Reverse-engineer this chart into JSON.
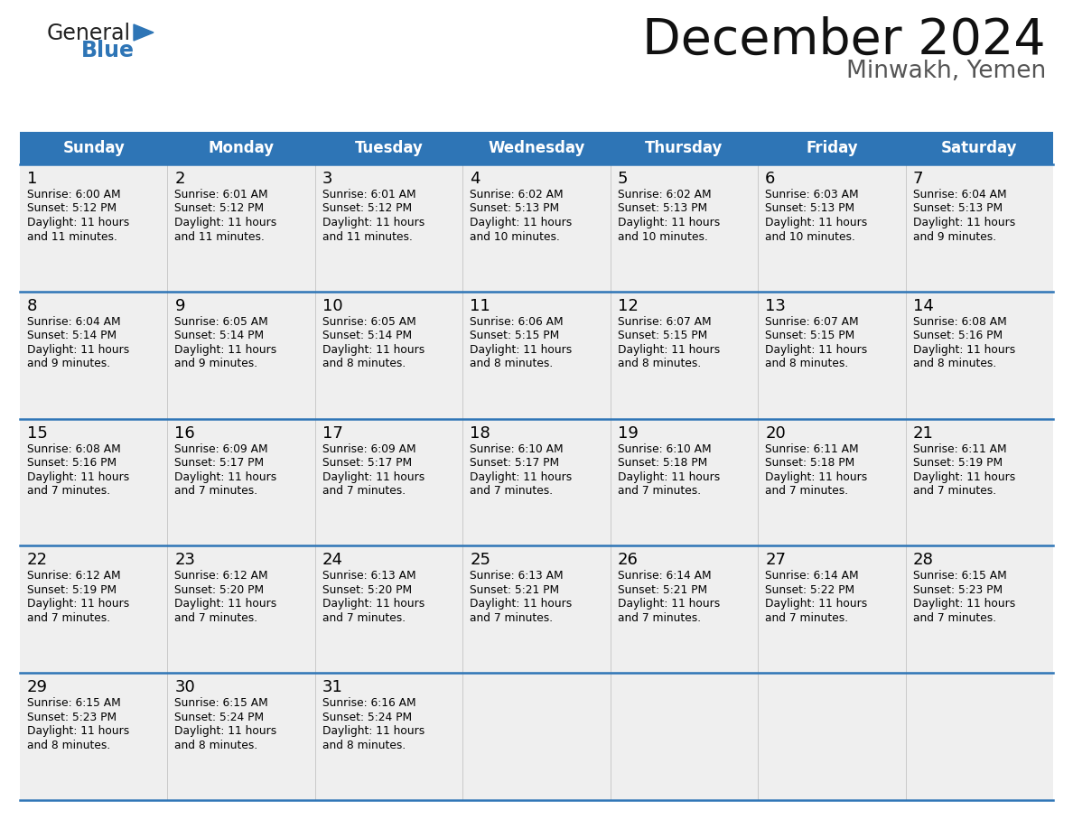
{
  "title": "December 2024",
  "subtitle": "Minwakh, Yemen",
  "header_color": "#2E75B6",
  "header_text_color": "#FFFFFF",
  "day_names": [
    "Sunday",
    "Monday",
    "Tuesday",
    "Wednesday",
    "Thursday",
    "Friday",
    "Saturday"
  ],
  "bg_color": "#FFFFFF",
  "cell_bg": "#EFEFEF",
  "row_divider_color": "#2E75B6",
  "cell_text_color": "#000000",
  "days": [
    {
      "date": 1,
      "col": 0,
      "row": 0,
      "sunrise": "6:00 AM",
      "sunset": "5:12 PM",
      "daylight_h": "11 hours",
      "daylight_m": "and 11 minutes."
    },
    {
      "date": 2,
      "col": 1,
      "row": 0,
      "sunrise": "6:01 AM",
      "sunset": "5:12 PM",
      "daylight_h": "11 hours",
      "daylight_m": "and 11 minutes."
    },
    {
      "date": 3,
      "col": 2,
      "row": 0,
      "sunrise": "6:01 AM",
      "sunset": "5:12 PM",
      "daylight_h": "11 hours",
      "daylight_m": "and 11 minutes."
    },
    {
      "date": 4,
      "col": 3,
      "row": 0,
      "sunrise": "6:02 AM",
      "sunset": "5:13 PM",
      "daylight_h": "11 hours",
      "daylight_m": "and 10 minutes."
    },
    {
      "date": 5,
      "col": 4,
      "row": 0,
      "sunrise": "6:02 AM",
      "sunset": "5:13 PM",
      "daylight_h": "11 hours",
      "daylight_m": "and 10 minutes."
    },
    {
      "date": 6,
      "col": 5,
      "row": 0,
      "sunrise": "6:03 AM",
      "sunset": "5:13 PM",
      "daylight_h": "11 hours",
      "daylight_m": "and 10 minutes."
    },
    {
      "date": 7,
      "col": 6,
      "row": 0,
      "sunrise": "6:04 AM",
      "sunset": "5:13 PM",
      "daylight_h": "11 hours",
      "daylight_m": "and 9 minutes."
    },
    {
      "date": 8,
      "col": 0,
      "row": 1,
      "sunrise": "6:04 AM",
      "sunset": "5:14 PM",
      "daylight_h": "11 hours",
      "daylight_m": "and 9 minutes."
    },
    {
      "date": 9,
      "col": 1,
      "row": 1,
      "sunrise": "6:05 AM",
      "sunset": "5:14 PM",
      "daylight_h": "11 hours",
      "daylight_m": "and 9 minutes."
    },
    {
      "date": 10,
      "col": 2,
      "row": 1,
      "sunrise": "6:05 AM",
      "sunset": "5:14 PM",
      "daylight_h": "11 hours",
      "daylight_m": "and 8 minutes."
    },
    {
      "date": 11,
      "col": 3,
      "row": 1,
      "sunrise": "6:06 AM",
      "sunset": "5:15 PM",
      "daylight_h": "11 hours",
      "daylight_m": "and 8 minutes."
    },
    {
      "date": 12,
      "col": 4,
      "row": 1,
      "sunrise": "6:07 AM",
      "sunset": "5:15 PM",
      "daylight_h": "11 hours",
      "daylight_m": "and 8 minutes."
    },
    {
      "date": 13,
      "col": 5,
      "row": 1,
      "sunrise": "6:07 AM",
      "sunset": "5:15 PM",
      "daylight_h": "11 hours",
      "daylight_m": "and 8 minutes."
    },
    {
      "date": 14,
      "col": 6,
      "row": 1,
      "sunrise": "6:08 AM",
      "sunset": "5:16 PM",
      "daylight_h": "11 hours",
      "daylight_m": "and 8 minutes."
    },
    {
      "date": 15,
      "col": 0,
      "row": 2,
      "sunrise": "6:08 AM",
      "sunset": "5:16 PM",
      "daylight_h": "11 hours",
      "daylight_m": "and 7 minutes."
    },
    {
      "date": 16,
      "col": 1,
      "row": 2,
      "sunrise": "6:09 AM",
      "sunset": "5:17 PM",
      "daylight_h": "11 hours",
      "daylight_m": "and 7 minutes."
    },
    {
      "date": 17,
      "col": 2,
      "row": 2,
      "sunrise": "6:09 AM",
      "sunset": "5:17 PM",
      "daylight_h": "11 hours",
      "daylight_m": "and 7 minutes."
    },
    {
      "date": 18,
      "col": 3,
      "row": 2,
      "sunrise": "6:10 AM",
      "sunset": "5:17 PM",
      "daylight_h": "11 hours",
      "daylight_m": "and 7 minutes."
    },
    {
      "date": 19,
      "col": 4,
      "row": 2,
      "sunrise": "6:10 AM",
      "sunset": "5:18 PM",
      "daylight_h": "11 hours",
      "daylight_m": "and 7 minutes."
    },
    {
      "date": 20,
      "col": 5,
      "row": 2,
      "sunrise": "6:11 AM",
      "sunset": "5:18 PM",
      "daylight_h": "11 hours",
      "daylight_m": "and 7 minutes."
    },
    {
      "date": 21,
      "col": 6,
      "row": 2,
      "sunrise": "6:11 AM",
      "sunset": "5:19 PM",
      "daylight_h": "11 hours",
      "daylight_m": "and 7 minutes."
    },
    {
      "date": 22,
      "col": 0,
      "row": 3,
      "sunrise": "6:12 AM",
      "sunset": "5:19 PM",
      "daylight_h": "11 hours",
      "daylight_m": "and 7 minutes."
    },
    {
      "date": 23,
      "col": 1,
      "row": 3,
      "sunrise": "6:12 AM",
      "sunset": "5:20 PM",
      "daylight_h": "11 hours",
      "daylight_m": "and 7 minutes."
    },
    {
      "date": 24,
      "col": 2,
      "row": 3,
      "sunrise": "6:13 AM",
      "sunset": "5:20 PM",
      "daylight_h": "11 hours",
      "daylight_m": "and 7 minutes."
    },
    {
      "date": 25,
      "col": 3,
      "row": 3,
      "sunrise": "6:13 AM",
      "sunset": "5:21 PM",
      "daylight_h": "11 hours",
      "daylight_m": "and 7 minutes."
    },
    {
      "date": 26,
      "col": 4,
      "row": 3,
      "sunrise": "6:14 AM",
      "sunset": "5:21 PM",
      "daylight_h": "11 hours",
      "daylight_m": "and 7 minutes."
    },
    {
      "date": 27,
      "col": 5,
      "row": 3,
      "sunrise": "6:14 AM",
      "sunset": "5:22 PM",
      "daylight_h": "11 hours",
      "daylight_m": "and 7 minutes."
    },
    {
      "date": 28,
      "col": 6,
      "row": 3,
      "sunrise": "6:15 AM",
      "sunset": "5:23 PM",
      "daylight_h": "11 hours",
      "daylight_m": "and 7 minutes."
    },
    {
      "date": 29,
      "col": 0,
      "row": 4,
      "sunrise": "6:15 AM",
      "sunset": "5:23 PM",
      "daylight_h": "11 hours",
      "daylight_m": "and 8 minutes."
    },
    {
      "date": 30,
      "col": 1,
      "row": 4,
      "sunrise": "6:15 AM",
      "sunset": "5:24 PM",
      "daylight_h": "11 hours",
      "daylight_m": "and 8 minutes."
    },
    {
      "date": 31,
      "col": 2,
      "row": 4,
      "sunrise": "6:16 AM",
      "sunset": "5:24 PM",
      "daylight_h": "11 hours",
      "daylight_m": "and 8 minutes."
    }
  ],
  "n_rows": 5,
  "n_cols": 7
}
